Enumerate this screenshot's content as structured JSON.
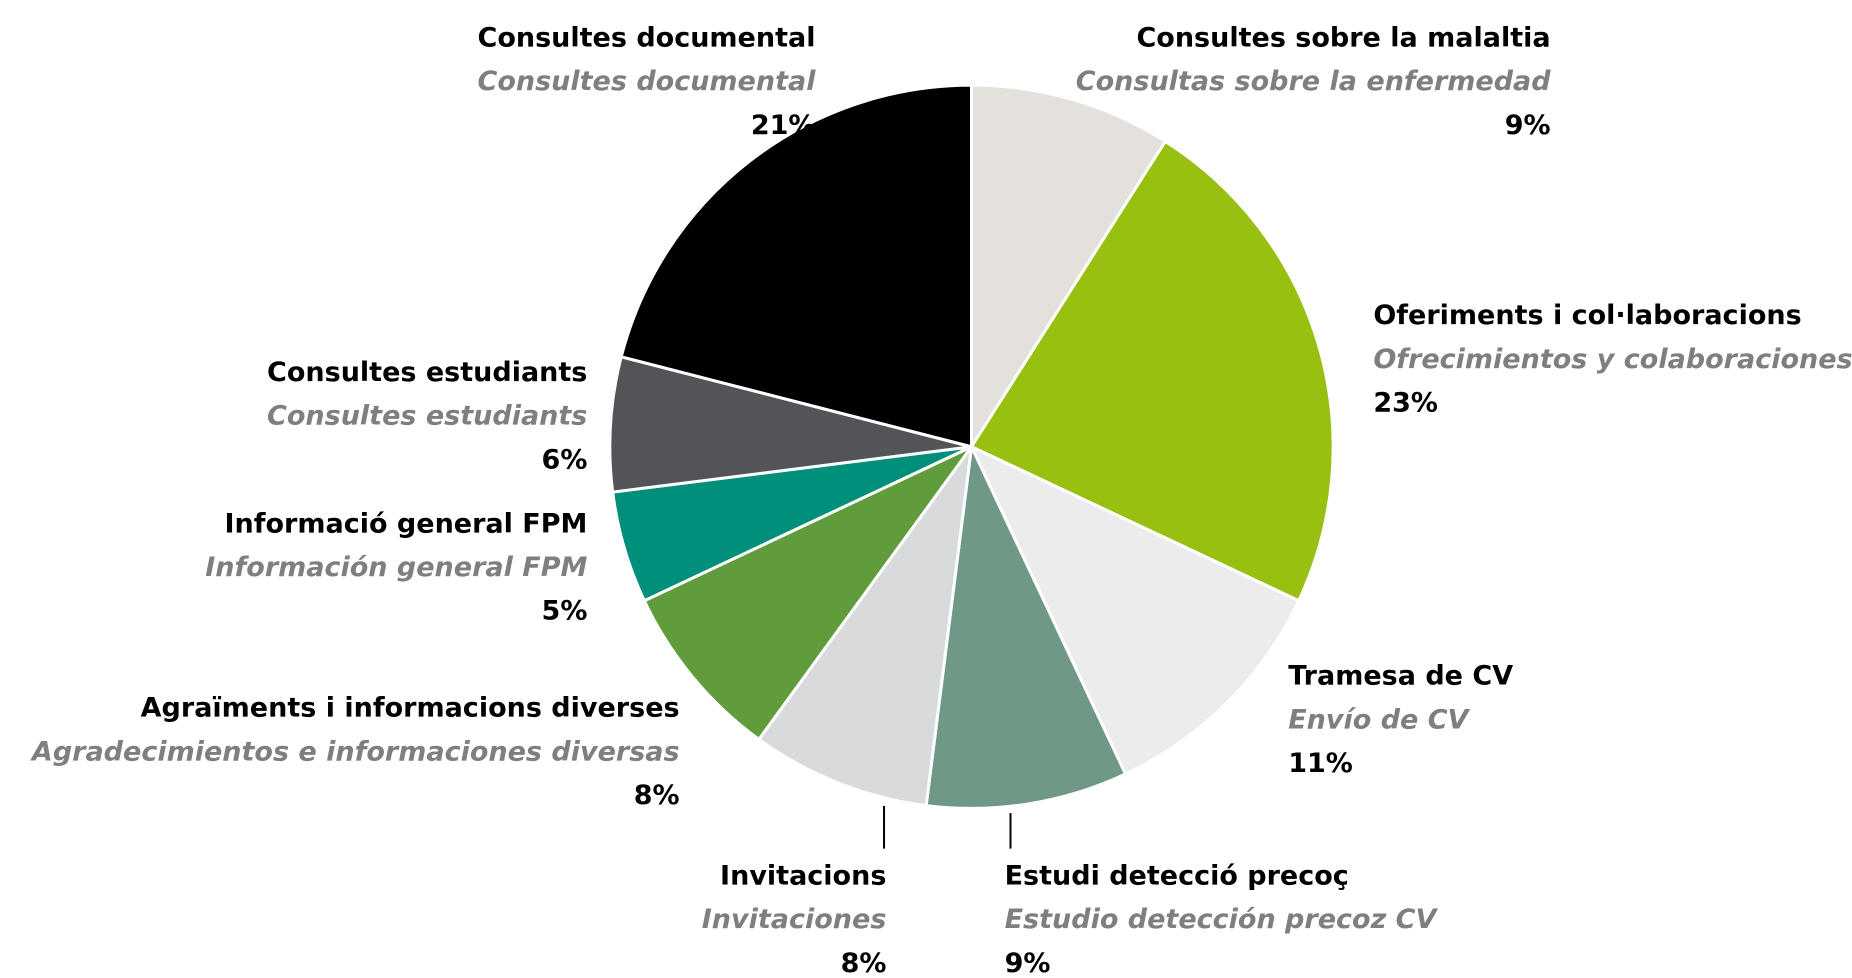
{
  "chart_data": {
    "type": "pie",
    "categories": [
      "Consultes sobre la malaltia",
      "Oferiments i col·laboracions",
      "Tramesa de CV",
      "Estudi detecció precoç",
      "Invitacions",
      "Agraïments i informacions diverses",
      "Informació general FPM",
      "Consultes estudiants",
      "Consultes documental"
    ],
    "subtitles": [
      "Consultas sobre la enfermedad",
      "Ofrecimientos y colaboraciones",
      "Envío de CV",
      "Estudio detección precoz CV",
      "Invitaciones",
      "Agradecimientos e informaciones diversas",
      "Información general FPM",
      "Consultes estudiants",
      "Consultes documental"
    ],
    "values": [
      9,
      23,
      11,
      9,
      8,
      8,
      5,
      6,
      21
    ],
    "value_labels": [
      "9%",
      "23%",
      "11%",
      "9%",
      "8%",
      "8%",
      "5%",
      "6%",
      "21%"
    ],
    "colors": [
      "#e4e1dc",
      "#98c011",
      "#ebeceb",
      "#6f9886",
      "#d9dadb",
      "#609c3c",
      "#008f7a",
      "#525457",
      "#000000"
    ]
  }
}
